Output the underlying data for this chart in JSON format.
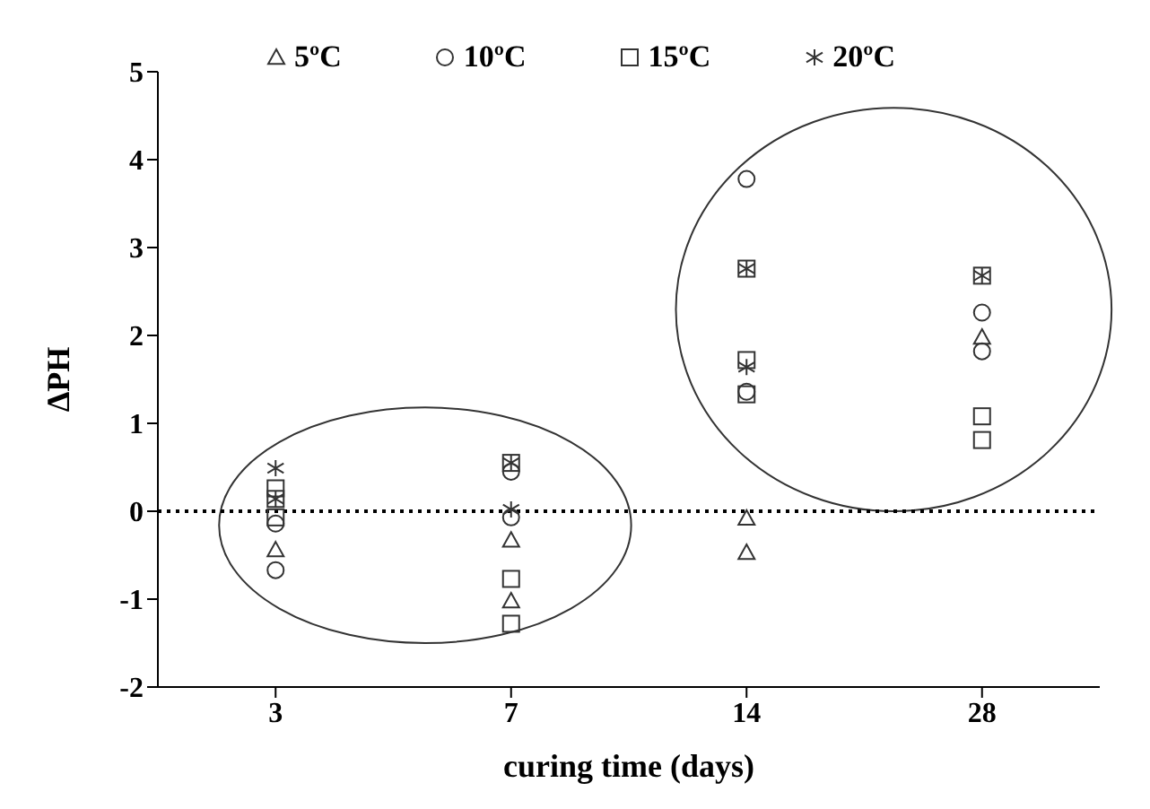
{
  "chart_data": {
    "type": "scatter",
    "xlabel": "curing time (days)",
    "ylabel": "ΔPH",
    "categories": [
      "3",
      "7",
      "14",
      "28"
    ],
    "series": [
      {
        "name": "5ºC",
        "color": "#333333",
        "marker": "triangle",
        "x": [
          "3",
          "7",
          "7",
          "14",
          "14",
          "28"
        ],
        "values": [
          -0.44,
          -0.33,
          -1.02,
          -0.08,
          -0.47,
          1.98
        ]
      },
      {
        "name": "10ºC",
        "color": "#333333",
        "marker": "circle",
        "x": [
          "3",
          "3",
          "7",
          "7",
          "14",
          "14",
          "28",
          "28"
        ],
        "values": [
          -0.14,
          -0.67,
          0.45,
          -0.07,
          3.78,
          1.36,
          2.26,
          1.82
        ]
      },
      {
        "name": "15ºC",
        "color": "#333333",
        "marker": "square",
        "x": [
          "3",
          "3",
          "3",
          "7",
          "7",
          "7",
          "14",
          "14",
          "14",
          "28",
          "28",
          "28"
        ],
        "values": [
          0.26,
          0.14,
          -0.07,
          0.55,
          -0.77,
          -1.28,
          2.76,
          1.72,
          1.33,
          2.68,
          1.08,
          0.81
        ]
      },
      {
        "name": "20ºC",
        "color": "#333333",
        "marker": "cross",
        "x": [
          "3",
          "3",
          "7",
          "7",
          "14",
          "14",
          "28"
        ],
        "values": [
          0.49,
          0.14,
          0.55,
          0.02,
          2.76,
          1.64,
          2.68
        ]
      }
    ],
    "ylim": [
      -2,
      5
    ],
    "yticks": [
      -2,
      -1,
      0,
      1,
      2,
      3,
      4,
      5
    ],
    "ref_lines": [
      {
        "axis": "y",
        "value": 0,
        "line_style": "dotted",
        "color": "#000000"
      }
    ],
    "grid": false,
    "legend": "top"
  }
}
